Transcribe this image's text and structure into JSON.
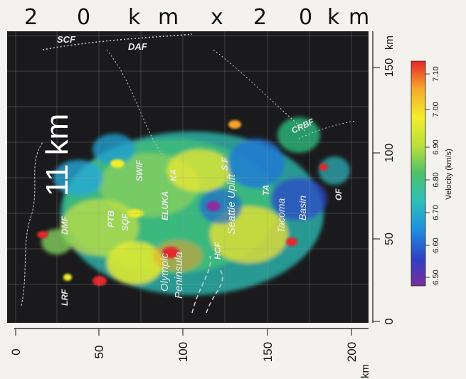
{
  "scale_text": {
    "label1": "2",
    "label2": "0",
    "label3": "k",
    "label4": "m",
    "label5": "x",
    "label6": "2",
    "label7": "0",
    "label8": "k",
    "label9": "m"
  },
  "depth_label": "11 km",
  "axes": {
    "bottom_ticks": [
      "0",
      "50",
      "100",
      "150",
      "200"
    ],
    "bottom_unit": "km",
    "right_ticks": [
      "0",
      "50",
      "100",
      "150"
    ],
    "right_unit": "km"
  },
  "colorbar": {
    "ticks": [
      "6.50",
      "6.60",
      "6.70",
      "6.80",
      "6.90",
      "7.00",
      "7.10"
    ],
    "title": "Velocity (km/s)",
    "colors": [
      "#7a2e9c",
      "#2f3fc4",
      "#1e8fe0",
      "#2cc0b8",
      "#4cc06a",
      "#b8df3a",
      "#f3ee2a",
      "#f7a52a",
      "#e5262a"
    ]
  },
  "map_labels": {
    "scf": "SCF",
    "daf": "DAF",
    "crbf": "CRBF",
    "dmf": "DMF",
    "ptb": "PTB",
    "sqf": "SQF",
    "swif": "SWIF",
    "ka": "KA",
    "eluxa": "ELUKA",
    "sf": "S F",
    "seattle": "Seattle Uplift",
    "ta": "TA",
    "tacoma": "Tacoma",
    "basin": "Basin",
    "of": "OF",
    "hcf": "HCF",
    "lrf": "LRF",
    "olympic": "Olympic",
    "peninsula": "Peninsula"
  }
}
